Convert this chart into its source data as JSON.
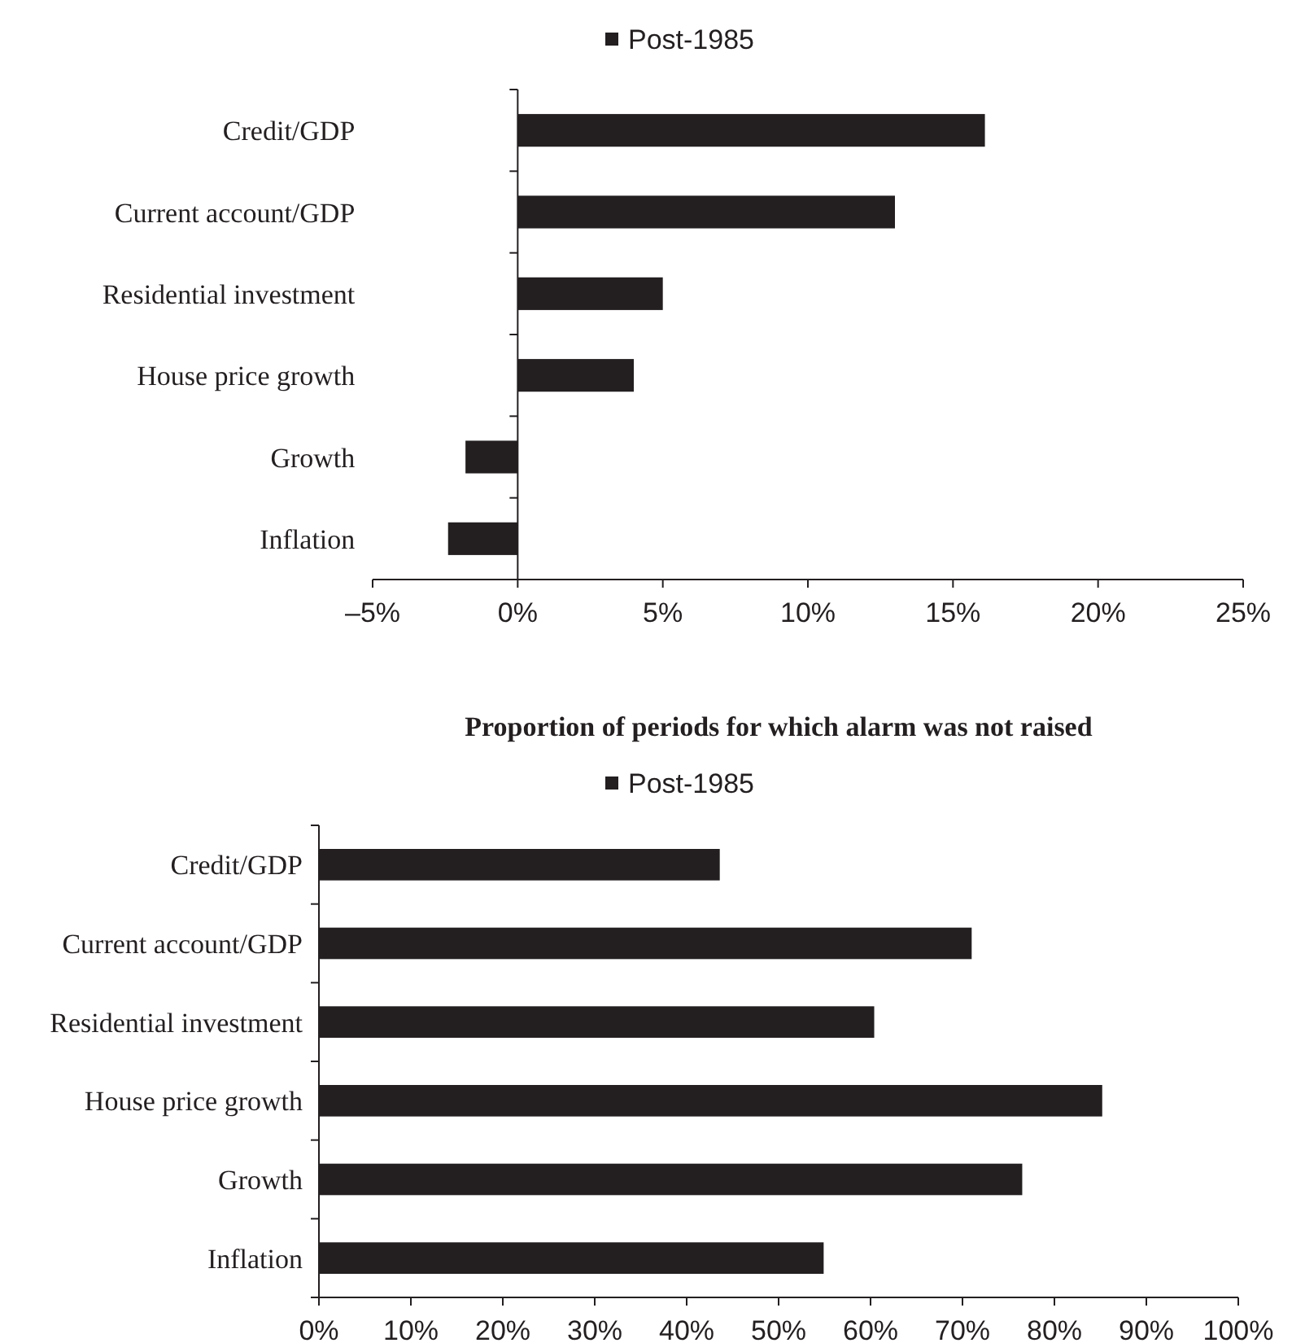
{
  "chart_data": [
    {
      "type": "bar",
      "orientation": "horizontal",
      "categories": [
        "Credit/GDP",
        "Current account/GDP",
        "Residential investment",
        "House price growth",
        "Growth",
        "Inflation"
      ],
      "series": [
        {
          "name": "Post-1985",
          "color": "#231f20",
          "values": [
            16.1,
            13.0,
            5.0,
            4.0,
            -1.8,
            -2.4
          ]
        }
      ],
      "xlim": [
        -5,
        25
      ],
      "xticks": [
        {
          "value": -5,
          "label": "–5%"
        },
        {
          "value": 0,
          "label": "0%"
        },
        {
          "value": 5,
          "label": "5%"
        },
        {
          "value": 10,
          "label": "10%"
        },
        {
          "value": 15,
          "label": "15%"
        },
        {
          "value": 20,
          "label": "20%"
        },
        {
          "value": 25,
          "label": "25%"
        }
      ],
      "legend": "top"
    },
    {
      "type": "bar",
      "orientation": "horizontal",
      "title": "Proportion of periods for which alarm was not raised",
      "categories": [
        "Credit/GDP",
        "Current account/GDP",
        "Residential investment",
        "House price growth",
        "Growth",
        "Inflation"
      ],
      "series": [
        {
          "name": "Post-1985",
          "color": "#231f20",
          "values": [
            43.6,
            71.0,
            60.4,
            85.2,
            76.5,
            54.9
          ]
        }
      ],
      "xlim": [
        0,
        100
      ],
      "xticks": [
        {
          "value": 0,
          "label": "0%"
        },
        {
          "value": 10,
          "label": "10%"
        },
        {
          "value": 20,
          "label": "20%"
        },
        {
          "value": 30,
          "label": "30%"
        },
        {
          "value": 40,
          "label": "40%"
        },
        {
          "value": 50,
          "label": "50%"
        },
        {
          "value": 60,
          "label": "60%"
        },
        {
          "value": 70,
          "label": "70%"
        },
        {
          "value": 80,
          "label": "80%"
        },
        {
          "value": 90,
          "label": "90%"
        },
        {
          "value": 100,
          "label": "100%"
        }
      ],
      "legend": "top"
    }
  ]
}
